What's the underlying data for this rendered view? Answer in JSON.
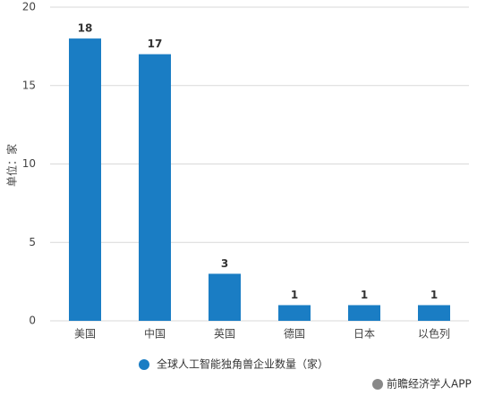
{
  "chart_data": {
    "type": "bar",
    "y_label": "单位：家",
    "categories": [
      "美国",
      "中国",
      "英国",
      "德国",
      "日本",
      "以色列"
    ],
    "series": [
      {
        "name": "全球人工智能独角兽企业数量（家）",
        "color": "#1a7dc4",
        "values": [
          18,
          17,
          3,
          1,
          1,
          1
        ]
      }
    ],
    "ylim": [
      0,
      20
    ],
    "yticks": [
      0,
      5,
      10,
      15,
      20
    ],
    "grid": true,
    "source": "前瞻经济学人APP"
  }
}
